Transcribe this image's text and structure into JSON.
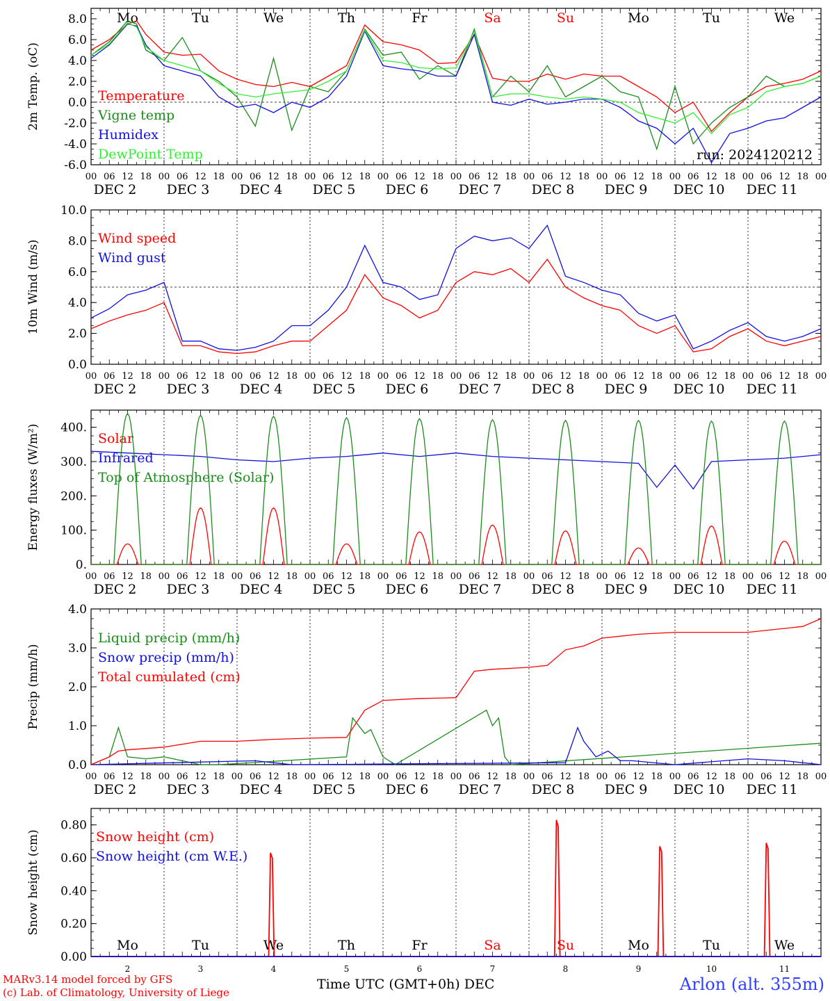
{
  "days_top": [
    {
      "label": "Mo",
      "color": "#000000"
    },
    {
      "label": "Tu",
      "color": "#000000"
    },
    {
      "label": "We",
      "color": "#000000"
    },
    {
      "label": "Th",
      "color": "#000000"
    },
    {
      "label": "Fr",
      "color": "#000000"
    },
    {
      "label": "Sa",
      "color": "#ff0000"
    },
    {
      "label": "Su",
      "color": "#ff0000"
    },
    {
      "label": "Mo",
      "color": "#000000"
    },
    {
      "label": "Tu",
      "color": "#000000"
    },
    {
      "label": "We",
      "color": "#000000"
    }
  ],
  "date_labels": [
    "DEC  2",
    "DEC  3",
    "DEC  4",
    "DEC  5",
    "DEC  6",
    "DEC  7",
    "DEC  8",
    "DEC  9",
    "DEC 10",
    "DEC 11"
  ],
  "hour_ticks": [
    "00",
    "06",
    "12",
    "18"
  ],
  "last_hour_tick": "00",
  "day_numbers": [
    "2",
    "3",
    "4",
    "5",
    "6",
    "7",
    "8",
    "9",
    "10",
    "11"
  ],
  "footer": {
    "model": "MARv3.14 model forced by GFS",
    "copyright": "(c) Lab. of Climatology, University of Liege",
    "xlabel": "Time UTC (GMT+0h)",
    "month": "DEC",
    "station": "Arlon (alt. 355m)"
  },
  "chart_data": [
    {
      "type": "line",
      "ylabel": "2m Temp. (oC)",
      "ylim": [
        -6,
        9
      ],
      "yticks": [
        "8.0",
        "6.0",
        "4.0",
        "2.0",
        "0.0",
        "-2.0",
        "-4.0",
        "-6.0"
      ],
      "run_label": "run: 2024120212",
      "x_unit": "hours since DEC 2 00 UTC",
      "series": [
        {
          "name": "Temperature",
          "color": "#ff0000",
          "x": [
            0,
            6,
            12,
            15,
            18,
            24,
            30,
            36,
            42,
            48,
            54,
            60,
            66,
            72,
            78,
            84,
            90,
            96,
            102,
            108,
            114,
            120,
            126,
            132,
            138,
            144,
            150,
            156,
            162,
            168,
            174,
            180,
            186,
            192,
            198,
            204,
            210,
            216,
            222,
            228,
            234,
            240
          ],
          "y": [
            5.0,
            6.0,
            7.5,
            7.8,
            6.5,
            4.8,
            4.5,
            4.6,
            3.0,
            2.2,
            1.7,
            1.5,
            1.9,
            1.5,
            2.5,
            3.5,
            7.4,
            5.8,
            5.5,
            5.0,
            3.7,
            3.8,
            6.5,
            2.3,
            2.0,
            2.0,
            2.7,
            2.2,
            2.7,
            2.5,
            2.5,
            1.5,
            0.5,
            -1.0,
            0.0,
            -2.8,
            -1.0,
            0.5,
            1.5,
            1.8,
            2.2,
            3.0
          ]
        },
        {
          "name": "Vigne temp",
          "color": "#1a8c1a",
          "x": [
            0,
            6,
            12,
            15,
            18,
            24,
            30,
            36,
            42,
            48,
            54,
            60,
            66,
            72,
            78,
            84,
            90,
            96,
            102,
            108,
            114,
            120,
            126,
            132,
            138,
            144,
            150,
            156,
            162,
            168,
            174,
            180,
            186,
            192,
            198,
            204,
            210,
            216,
            222,
            228,
            234,
            240
          ],
          "y": [
            4.5,
            5.8,
            7.8,
            7.5,
            5.0,
            4.0,
            6.2,
            3.0,
            2.0,
            0.5,
            -2.3,
            4.2,
            -2.7,
            1.5,
            1.0,
            3.0,
            7.0,
            4.5,
            4.8,
            2.2,
            3.5,
            2.5,
            7.0,
            0.5,
            2.5,
            1.0,
            3.5,
            0.5,
            1.5,
            2.5,
            1.0,
            0.5,
            -4.5,
            1.5,
            -4.0,
            -2.0,
            -0.5,
            0.5,
            2.5,
            1.5,
            1.8,
            2.5
          ]
        },
        {
          "name": "Humidex",
          "color": "#1010e0",
          "x": [
            0,
            6,
            12,
            15,
            18,
            24,
            30,
            36,
            42,
            48,
            54,
            60,
            66,
            72,
            78,
            84,
            90,
            96,
            102,
            108,
            114,
            120,
            126,
            132,
            138,
            144,
            150,
            156,
            162,
            168,
            174,
            180,
            186,
            192,
            198,
            204,
            210,
            216,
            222,
            228,
            234,
            240
          ],
          "y": [
            4.2,
            5.5,
            7.5,
            7.3,
            5.5,
            3.5,
            3.0,
            2.5,
            0.5,
            -0.5,
            -0.2,
            -1.0,
            0.0,
            -0.5,
            0.5,
            2.5,
            6.8,
            3.5,
            3.2,
            3.0,
            2.5,
            2.5,
            6.5,
            0.0,
            -0.3,
            0.3,
            -0.2,
            0.0,
            0.3,
            0.3,
            -0.5,
            -1.8,
            -2.5,
            -4.0,
            -2.5,
            -5.8,
            -3.0,
            -2.5,
            -1.8,
            -1.5,
            -0.5,
            0.5
          ]
        },
        {
          "name": "DewPoint Temp",
          "color": "#33ee33",
          "x": [
            0,
            6,
            12,
            15,
            18,
            24,
            30,
            36,
            42,
            48,
            54,
            60,
            66,
            72,
            78,
            84,
            90,
            96,
            102,
            108,
            114,
            120,
            126,
            132,
            138,
            144,
            150,
            156,
            162,
            168,
            174,
            180,
            186,
            192,
            198,
            204,
            210,
            216,
            222,
            228,
            234,
            240
          ],
          "y": [
            4.5,
            5.6,
            7.6,
            7.2,
            5.3,
            4.0,
            3.5,
            3.0,
            1.8,
            0.8,
            0.5,
            0.8,
            1.0,
            1.2,
            2.0,
            3.0,
            6.9,
            4.0,
            3.8,
            3.3,
            3.2,
            3.3,
            6.8,
            0.5,
            0.8,
            0.8,
            0.5,
            0.3,
            0.5,
            0.3,
            0.0,
            -1.0,
            -1.5,
            -2.0,
            -1.0,
            -3.0,
            -1.2,
            -0.5,
            1.0,
            1.5,
            1.8,
            2.5
          ]
        }
      ]
    },
    {
      "type": "line",
      "ylabel": "10m Wind (m/s)",
      "ylim": [
        0,
        10
      ],
      "yticks": [
        "10.0",
        "8.0",
        "6.0",
        "4.0",
        "2.0",
        "0.0"
      ],
      "refline": 5,
      "series": [
        {
          "name": "Wind speed",
          "color": "#ff0000",
          "x": [
            0,
            6,
            12,
            18,
            24,
            30,
            36,
            42,
            48,
            54,
            60,
            66,
            72,
            78,
            84,
            90,
            96,
            102,
            108,
            114,
            120,
            126,
            132,
            138,
            144,
            150,
            156,
            162,
            168,
            174,
            180,
            186,
            192,
            198,
            204,
            210,
            216,
            222,
            228,
            234,
            240
          ],
          "y": [
            2.3,
            2.8,
            3.2,
            3.5,
            4.0,
            1.2,
            1.2,
            0.8,
            0.7,
            0.8,
            1.2,
            1.5,
            1.5,
            2.5,
            3.5,
            5.8,
            4.3,
            3.8,
            3.0,
            3.5,
            5.3,
            6.0,
            5.8,
            6.2,
            5.3,
            6.8,
            5.0,
            4.3,
            3.8,
            3.5,
            2.5,
            2.0,
            2.5,
            0.8,
            1.0,
            1.8,
            2.3,
            1.5,
            1.2,
            1.5,
            1.8
          ]
        },
        {
          "name": "Wind gust",
          "color": "#1010e0",
          "x": [
            0,
            6,
            12,
            18,
            24,
            30,
            36,
            42,
            48,
            54,
            60,
            66,
            72,
            78,
            84,
            90,
            96,
            102,
            108,
            114,
            120,
            126,
            132,
            138,
            144,
            150,
            156,
            162,
            168,
            174,
            180,
            186,
            192,
            198,
            204,
            210,
            216,
            222,
            228,
            234,
            240
          ],
          "y": [
            3.0,
            3.6,
            4.5,
            4.8,
            5.3,
            1.5,
            1.5,
            1.0,
            0.9,
            1.1,
            1.5,
            2.5,
            2.5,
            3.5,
            5.0,
            7.7,
            5.3,
            5.0,
            4.2,
            4.5,
            7.5,
            8.3,
            8.0,
            8.2,
            7.5,
            9.0,
            5.7,
            5.3,
            4.8,
            4.5,
            3.3,
            2.8,
            3.2,
            1.0,
            1.5,
            2.2,
            2.7,
            1.8,
            1.5,
            1.8,
            2.3
          ]
        }
      ]
    },
    {
      "type": "line",
      "ylabel": "Energy fluxes (W/m²)",
      "ylim": [
        0,
        450
      ],
      "yticks": [
        "400.",
        "300.",
        "200.",
        "100.",
        "0."
      ],
      "series": [
        {
          "name": "Solar",
          "color": "#ff0000",
          "peaks": [
            60,
            165,
            165,
            60,
            95,
            115,
            98,
            48,
            112,
            68
          ]
        },
        {
          "name": "Infrared",
          "color": "#1010e0",
          "x": [
            0,
            12,
            24,
            36,
            48,
            60,
            72,
            84,
            96,
            108,
            120,
            132,
            144,
            156,
            168,
            180,
            186,
            192,
            198,
            204,
            216,
            228,
            240
          ],
          "y": [
            330,
            325,
            320,
            315,
            305,
            300,
            310,
            315,
            325,
            315,
            325,
            315,
            310,
            305,
            300,
            295,
            225,
            290,
            220,
            300,
            305,
            310,
            320
          ]
        },
        {
          "name": "Top of Atmosphere (Solar)",
          "color": "#1a8c1a",
          "peaks": [
            440,
            435,
            432,
            428,
            425,
            422,
            420,
            420,
            418,
            418
          ]
        }
      ]
    },
    {
      "type": "line",
      "ylabel": "Precip (mm/h)",
      "ylim": [
        0,
        4
      ],
      "yticks": [
        "4.0",
        "3.0",
        "2.0",
        "1.0",
        "0.0"
      ],
      "series": [
        {
          "name": "Liquid precip (mm/h)",
          "color": "#1a8c1a",
          "x": [
            0,
            6,
            9,
            12,
            18,
            24,
            30,
            36,
            42,
            84,
            86,
            90,
            92,
            96,
            100,
            130,
            132,
            134,
            136,
            138,
            240
          ],
          "y": [
            0,
            0.2,
            0.95,
            0.2,
            0.15,
            0.2,
            0.1,
            0,
            0,
            0.2,
            1.2,
            0.8,
            0.9,
            0.2,
            0,
            1.4,
            1.0,
            1.2,
            0.2,
            0,
            0.55
          ]
        },
        {
          "name": "Snow precip (mm/h)",
          "color": "#1010e0",
          "x": [
            0,
            54,
            60,
            66,
            156,
            160,
            162,
            166,
            170,
            174,
            178,
            192,
            216,
            228,
            240
          ],
          "y": [
            0,
            0.1,
            0.05,
            0,
            0.05,
            0.95,
            0.6,
            0.2,
            0.35,
            0.1,
            0.1,
            0,
            0.15,
            0.1,
            0
          ]
        },
        {
          "name": "Total cumulated (cm)",
          "color": "#ff0000",
          "x": [
            0,
            6,
            9,
            12,
            24,
            36,
            48,
            60,
            72,
            84,
            90,
            96,
            108,
            120,
            126,
            132,
            144,
            150,
            156,
            162,
            168,
            180,
            192,
            204,
            216,
            234,
            240
          ],
          "y": [
            0,
            0.2,
            0.35,
            0.38,
            0.45,
            0.6,
            0.6,
            0.65,
            0.68,
            0.7,
            1.4,
            1.65,
            1.7,
            1.72,
            2.4,
            2.45,
            2.5,
            2.55,
            2.95,
            3.05,
            3.25,
            3.35,
            3.4,
            3.4,
            3.4,
            3.55,
            3.75
          ]
        }
      ]
    },
    {
      "type": "line",
      "ylabel": "Snow height (cm)",
      "ylim": [
        0,
        0.9
      ],
      "yticks": [
        "0.80",
        "0.60",
        "0.40",
        "0.20",
        "0.00"
      ],
      "series": [
        {
          "name": "Snow height (cm)",
          "color": "#ff0000",
          "spikes": [
            {
              "x": 59,
              "y": 0.63
            },
            {
              "x": 153,
              "y": 0.83
            },
            {
              "x": 187,
              "y": 0.67
            },
            {
              "x": 222,
              "y": 0.69
            }
          ]
        },
        {
          "name": "Snow height (cm W.E.)",
          "color": "#1010e0",
          "spikes": []
        }
      ]
    }
  ]
}
